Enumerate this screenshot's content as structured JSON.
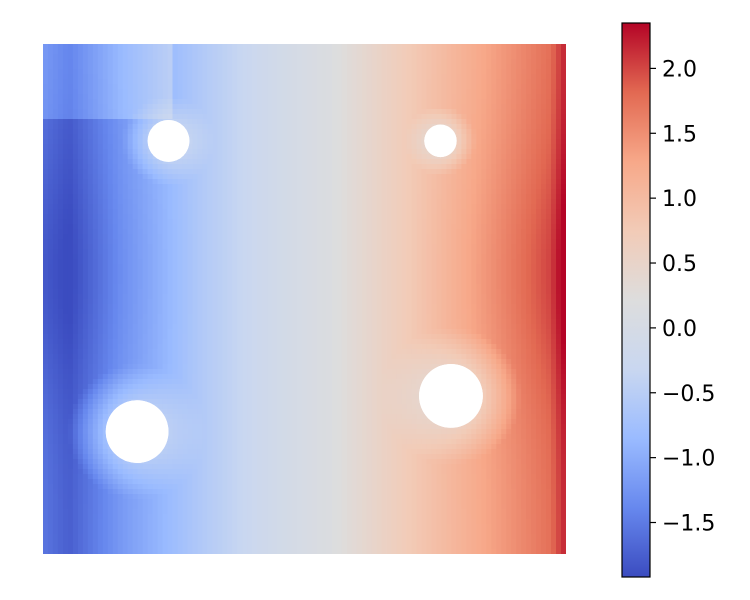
{
  "chart_data": {
    "type": "heatmap",
    "title": "",
    "xlabel": "",
    "ylabel": "",
    "grid": false,
    "axes_visible": false,
    "colormap": "coolwarm",
    "colormap_stops": [
      "#3b4cc0",
      "#6788ee",
      "#9abbff",
      "#c9d7f0",
      "#dddddd",
      "#f2cbb7",
      "#f7a889",
      "#e26952",
      "#b40426"
    ],
    "domain": {
      "shape": "square plate",
      "x_range": [
        0,
        1
      ],
      "y_range": [
        0,
        1
      ]
    },
    "field_range": [
      -1.92,
      2.35
    ],
    "field_description": "values increase from left edge (about -1.7 to -1.9) to right edge (about 1.5 to 2.35), near zero in the vertical middle band",
    "holes": [
      {
        "cx": 0.24,
        "cy": 0.81,
        "r": 0.04
      },
      {
        "cx": 0.76,
        "cy": 0.81,
        "r": 0.031
      },
      {
        "cx": 0.18,
        "cy": 0.24,
        "r": 0.06
      },
      {
        "cx": 0.78,
        "cy": 0.31,
        "r": 0.061
      }
    ],
    "colorbar": {
      "vmin": -1.92,
      "vmax": 2.35,
      "ticks": [
        2.0,
        1.5,
        1.0,
        0.5,
        0.0,
        -0.5,
        -1.0,
        -1.5
      ],
      "tick_labels": [
        "2.0",
        "1.5",
        "1.0",
        "0.5",
        "0.0",
        "−0.5",
        "−1.0",
        "−1.5"
      ]
    }
  }
}
